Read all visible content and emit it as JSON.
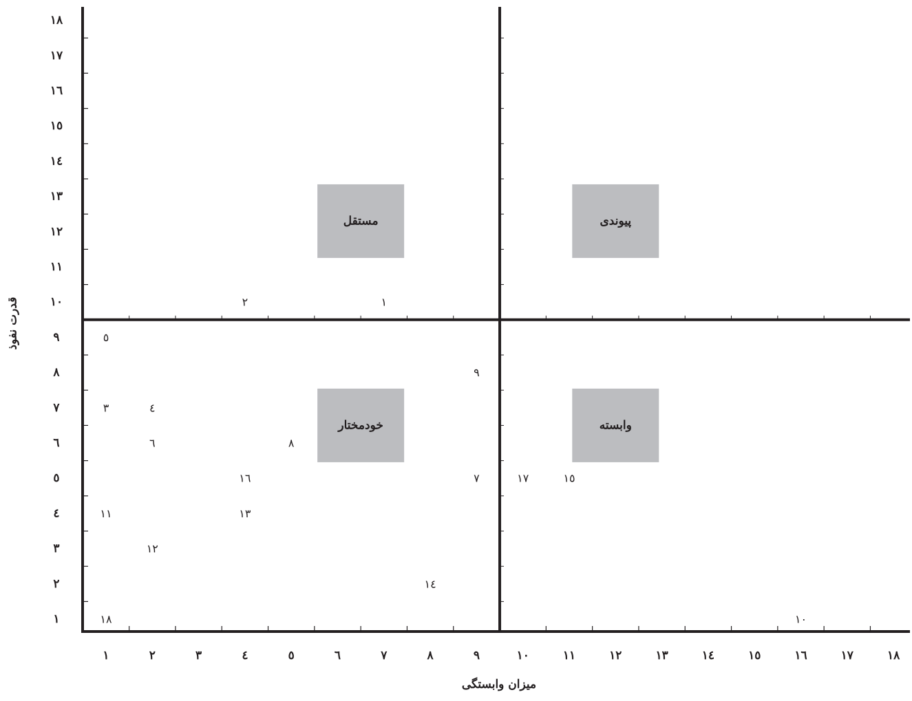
{
  "chart_data": {
    "type": "scatter",
    "xlabel": "میزان وابستگی",
    "ylabel": "قدرت نفوذ",
    "xlim": [
      1,
      18
    ],
    "ylim": [
      1,
      18
    ],
    "grid": false,
    "x_ticks": [
      "١",
      "٢",
      "٣",
      "٤",
      "٥",
      "٦",
      "٧",
      "٨",
      "٩",
      "١٠",
      "١١",
      "١٢",
      "١٣",
      "١٤",
      "١٥",
      "١٦",
      "١٧",
      "١٨"
    ],
    "y_ticks": [
      "١",
      "٢",
      "٣",
      "٤",
      "٥",
      "٦",
      "٧",
      "٨",
      "٩",
      "١٠",
      "١١",
      "١٢",
      "١٣",
      "١٤",
      "١٥",
      "١٦",
      "١٧",
      "١٨"
    ],
    "quadrant_divider": {
      "x": 9.5,
      "y": 9.5
    },
    "quadrants": [
      {
        "label": "مستقل",
        "x": 6.5,
        "y": 12.3
      },
      {
        "label": "پیوندی",
        "x": 12,
        "y": 12.3
      },
      {
        "label": "خودمختار",
        "x": 6.5,
        "y": 6.5
      },
      {
        "label": "وابسته",
        "x": 12,
        "y": 6.5
      }
    ],
    "points": [
      {
        "label": "١",
        "x": 7,
        "y": 10
      },
      {
        "label": "٢",
        "x": 4,
        "y": 10
      },
      {
        "label": "٣",
        "x": 1,
        "y": 7
      },
      {
        "label": "٤",
        "x": 2,
        "y": 7
      },
      {
        "label": "٥",
        "x": 1,
        "y": 9
      },
      {
        "label": "٦",
        "x": 2,
        "y": 6
      },
      {
        "label": "٧",
        "x": 9,
        "y": 5
      },
      {
        "label": "٨",
        "x": 5,
        "y": 6
      },
      {
        "label": "٩",
        "x": 9,
        "y": 8
      },
      {
        "label": "١٠",
        "x": 16,
        "y": 1
      },
      {
        "label": "١١",
        "x": 1,
        "y": 4
      },
      {
        "label": "١٢",
        "x": 2,
        "y": 3
      },
      {
        "label": "١٣",
        "x": 4,
        "y": 4
      },
      {
        "label": "١٤",
        "x": 8,
        "y": 2
      },
      {
        "label": "١٥",
        "x": 11,
        "y": 5
      },
      {
        "label": "١٦",
        "x": 4,
        "y": 5
      },
      {
        "label": "١٧",
        "x": 10,
        "y": 5
      },
      {
        "label": "١٨",
        "x": 1,
        "y": 1
      }
    ],
    "colors": {
      "axis": "#231f20",
      "quadrant_box": "#bcbdc0"
    }
  }
}
